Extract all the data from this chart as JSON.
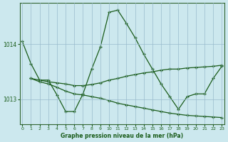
{
  "xlabel": "Graphe pression niveau de la mer (hPa)",
  "bg_color": "#cce8ee",
  "line_color": "#1a5c1a",
  "grid_color": "#99bbcc",
  "ylim": [
    1012.55,
    1014.75
  ],
  "xlim": [
    -0.3,
    23.3
  ],
  "yticks": [
    1013,
    1014
  ],
  "xticks": [
    0,
    1,
    2,
    3,
    4,
    5,
    6,
    7,
    8,
    9,
    10,
    11,
    12,
    13,
    14,
    15,
    16,
    17,
    18,
    19,
    20,
    21,
    22,
    23
  ],
  "s1_x": [
    0,
    1,
    2,
    3,
    4,
    5,
    6,
    7,
    8,
    9,
    10,
    11,
    12,
    13,
    14,
    15,
    16,
    17,
    18,
    19,
    20,
    21,
    22,
    23
  ],
  "s1_y": [
    1014.05,
    1013.65,
    1013.35,
    1013.35,
    1013.08,
    1012.78,
    1012.78,
    1013.1,
    1013.55,
    1013.95,
    1014.58,
    1014.62,
    1014.38,
    1014.12,
    1013.82,
    1013.55,
    1013.28,
    1013.05,
    1012.82,
    1013.05,
    1013.1,
    1013.1,
    1013.38,
    1013.6
  ],
  "s2_x": [
    1,
    2,
    3,
    4,
    5,
    6,
    7,
    8,
    9,
    10,
    11,
    12,
    13,
    14,
    15,
    16,
    17,
    18,
    19,
    20,
    21,
    22,
    23
  ],
  "s2_y": [
    1013.38,
    1013.35,
    1013.32,
    1013.3,
    1013.28,
    1013.25,
    1013.25,
    1013.27,
    1013.3,
    1013.35,
    1013.38,
    1013.42,
    1013.45,
    1013.48,
    1013.5,
    1013.53,
    1013.55,
    1013.55,
    1013.57,
    1013.58,
    1013.59,
    1013.6,
    1013.62
  ],
  "s3_x": [
    1,
    2,
    3,
    4,
    5,
    6,
    7,
    8,
    9,
    10,
    11,
    12,
    13,
    14,
    15,
    16,
    17,
    18,
    19,
    20,
    21,
    22,
    23
  ],
  "s3_y": [
    1013.38,
    1013.32,
    1013.28,
    1013.22,
    1013.15,
    1013.1,
    1013.08,
    1013.05,
    1013.02,
    1012.98,
    1012.93,
    1012.9,
    1012.87,
    1012.84,
    1012.81,
    1012.78,
    1012.75,
    1012.73,
    1012.71,
    1012.7,
    1012.69,
    1012.68,
    1012.67
  ]
}
